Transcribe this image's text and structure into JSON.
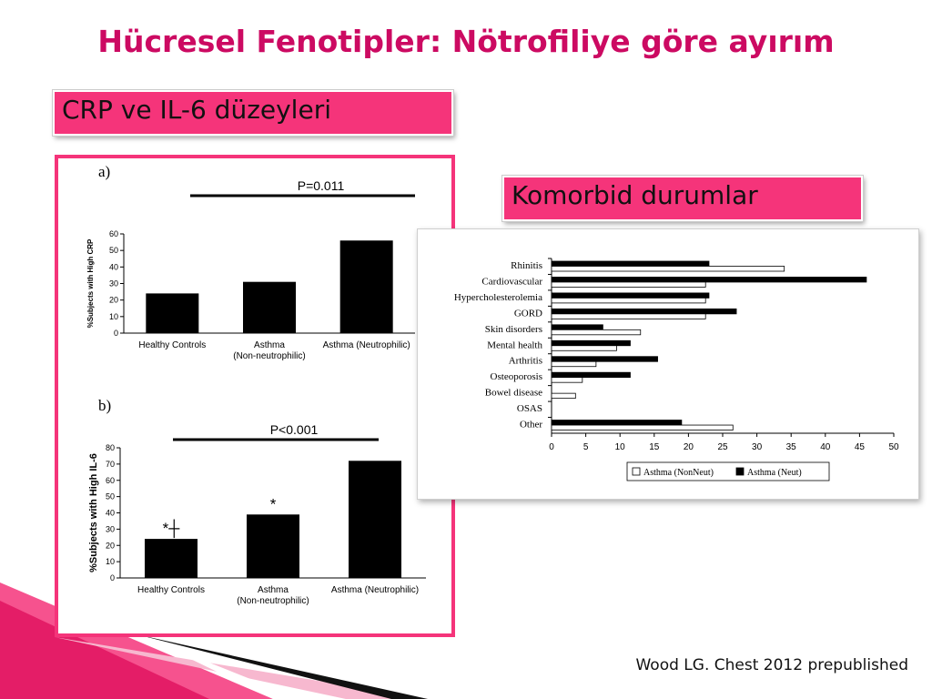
{
  "slide": {
    "title": "Hücresel Fenotipler: Nötrofiliye göre ayırım",
    "crp_box_label": "CRP ve IL-6 düzeyleri",
    "komorbid_box_label": "Komorbid durumlar",
    "citation": "Wood LG. Chest 2012 prepublished"
  },
  "colors": {
    "title": "#cc0a62",
    "accent": "#f5347a",
    "bar_fill": "#000000"
  },
  "chart_data": [
    {
      "type": "bar",
      "panel_label": "a)",
      "annotation": "P=0.011",
      "ylabel": "%Subjects with High CRP",
      "ylim": [
        0,
        60
      ],
      "yticks": [
        0,
        10,
        20,
        30,
        40,
        50,
        60
      ],
      "categories": [
        "Healthy Controls",
        "Asthma (Non-neutrophilic)",
        "Asthma (Neutrophilic)"
      ],
      "category_lines": [
        [
          "Healthy Controls"
        ],
        [
          "Asthma",
          "(Non-neutrophilic)"
        ],
        [
          "Asthma (Neutrophilic)"
        ]
      ],
      "values": [
        24,
        31,
        56
      ],
      "bar_marks": [
        "",
        "",
        ""
      ]
    },
    {
      "type": "bar",
      "panel_label": "b)",
      "annotation": "P<0.001",
      "ylabel": "%Subjects with High IL-6",
      "ylim": [
        0,
        80
      ],
      "yticks": [
        0,
        10,
        20,
        30,
        40,
        50,
        60,
        70,
        80
      ],
      "categories": [
        "Healthy Controls",
        "Asthma (Non-neutrophilic)",
        "Asthma (Neutrophilic)"
      ],
      "category_lines": [
        [
          "Healthy Controls"
        ],
        [
          "Asthma",
          "(Non-neutrophilic)"
        ],
        [
          "Asthma (Neutrophilic)"
        ]
      ],
      "values": [
        24,
        39,
        72
      ],
      "bar_marks": [
        "*┼",
        "*",
        ""
      ]
    },
    {
      "type": "bar",
      "orientation": "horizontal",
      "categories": [
        "Rhinitis",
        "Cardiovascular",
        "Hypercholesterolemia",
        "GORD",
        "Skin disorders",
        "Mental health",
        "Arthritis",
        "Osteoporosis",
        "Bowel disease",
        "OSAS",
        "Other"
      ],
      "series": [
        {
          "name": "Asthma (NonNeut)",
          "color": "#ffffff",
          "values": [
            34,
            22.5,
            22.5,
            22.5,
            13,
            9.5,
            6.5,
            4.5,
            3.5,
            0,
            26.5
          ]
        },
        {
          "name": "Asthma (Neut)",
          "color": "#000000",
          "values": [
            23,
            46,
            23,
            27,
            7.5,
            11.5,
            15.5,
            11.5,
            0,
            0,
            19
          ]
        }
      ],
      "xlim": [
        0,
        50
      ],
      "xticks": [
        0,
        5,
        10,
        15,
        20,
        25,
        30,
        35,
        40,
        45,
        50
      ],
      "legend": "bottom"
    }
  ]
}
